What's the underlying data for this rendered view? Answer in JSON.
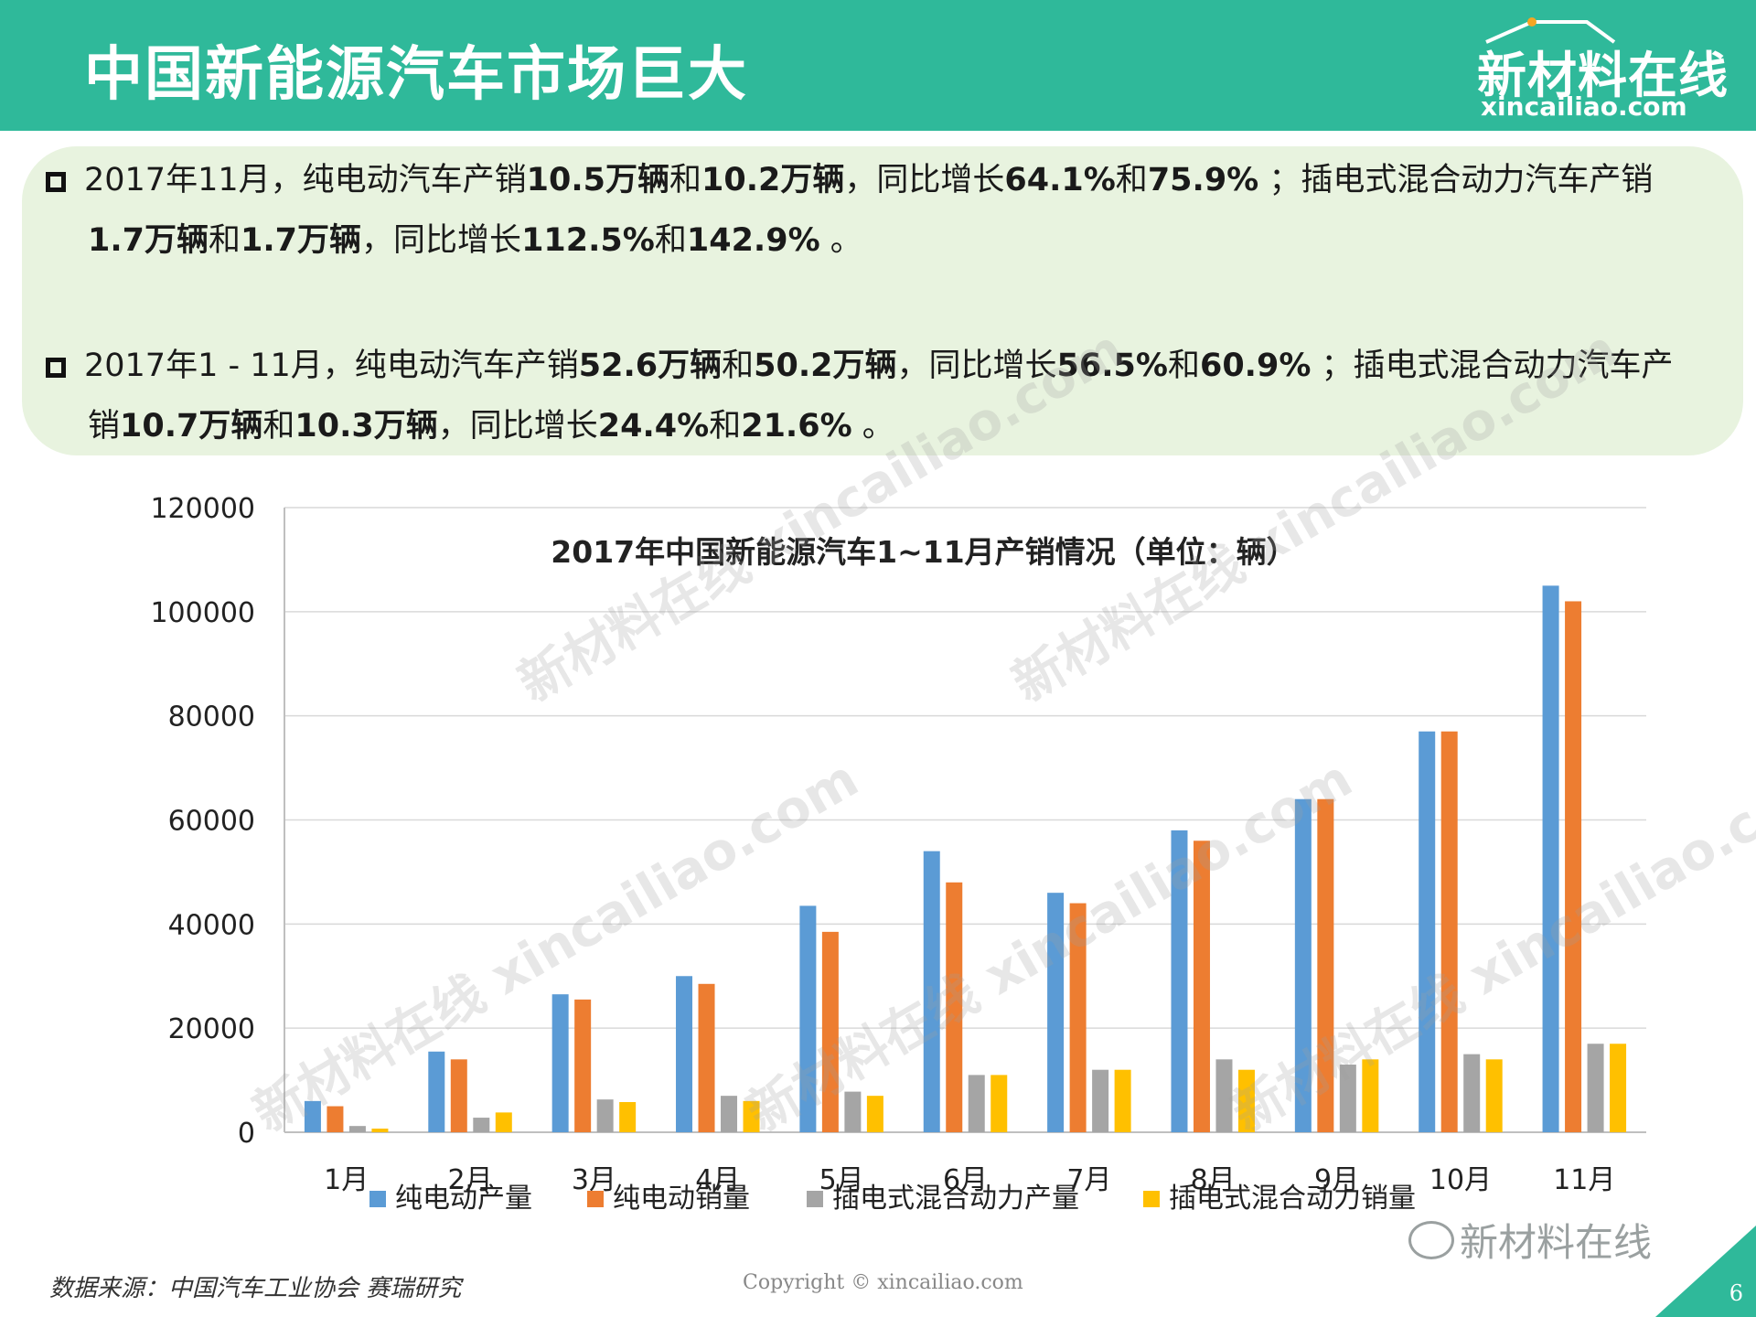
{
  "header": {
    "title": "中国新能源汽车市场巨大",
    "logo_cn": "新材料在线",
    "logo_en": "xincailiao.com"
  },
  "bullets": [
    {
      "segments": [
        {
          "text": "2017年11月，纯电动汽车产销",
          "bold": false
        },
        {
          "text": "10.5万辆",
          "bold": true
        },
        {
          "text": "和",
          "bold": false
        },
        {
          "text": "10.2万辆",
          "bold": true
        },
        {
          "text": "，同比增长",
          "bold": false
        },
        {
          "text": "64.1%",
          "bold": true
        },
        {
          "text": "和",
          "bold": false
        },
        {
          "text": "75.9%",
          "bold": true
        },
        {
          "text": " ；插电式混合动力汽车产销",
          "bold": false
        }
      ],
      "cont": [
        {
          "text": "1.7万辆",
          "bold": true
        },
        {
          "text": "和",
          "bold": false
        },
        {
          "text": "1.7万辆",
          "bold": true
        },
        {
          "text": "，同比增长",
          "bold": false
        },
        {
          "text": "112.5%",
          "bold": true
        },
        {
          "text": "和",
          "bold": false
        },
        {
          "text": "142.9%",
          "bold": true
        },
        {
          "text": " 。",
          "bold": false
        }
      ]
    },
    {
      "segments": [
        {
          "text": "2017年1 - 11月，纯电动汽车产销",
          "bold": false
        },
        {
          "text": "52.6万辆",
          "bold": true
        },
        {
          "text": "和",
          "bold": false
        },
        {
          "text": "50.2万辆",
          "bold": true
        },
        {
          "text": "，同比增长",
          "bold": false
        },
        {
          "text": "56.5%",
          "bold": true
        },
        {
          "text": "和",
          "bold": false
        },
        {
          "text": "60.9%",
          "bold": true
        },
        {
          "text": " ；插电式混合动力汽车产",
          "bold": false
        }
      ],
      "cont": [
        {
          "text": "销",
          "bold": false
        },
        {
          "text": "10.7万辆",
          "bold": true
        },
        {
          "text": "和",
          "bold": false
        },
        {
          "text": "10.3万辆",
          "bold": true
        },
        {
          "text": "，同比增长",
          "bold": false
        },
        {
          "text": "24.4%",
          "bold": true
        },
        {
          "text": "和",
          "bold": false
        },
        {
          "text": "21.6%",
          "bold": true
        },
        {
          "text": " 。",
          "bold": false
        }
      ]
    }
  ],
  "chart_data": {
    "type": "bar",
    "title": "2017年中国新能源汽车1~11月产销情况（单位：辆）",
    "categories": [
      "1月",
      "2月",
      "3月",
      "4月",
      "5月",
      "6月",
      "7月",
      "8月",
      "9月",
      "10月",
      "11月"
    ],
    "series": [
      {
        "name": "纯电动产量",
        "color": "#5b9bd5",
        "values": [
          6000,
          15500,
          26500,
          30000,
          43500,
          54000,
          46000,
          58000,
          64000,
          77000,
          105000
        ]
      },
      {
        "name": "纯电动销量",
        "color": "#ed7d31",
        "values": [
          5000,
          14000,
          25500,
          28500,
          38500,
          48000,
          44000,
          56000,
          64000,
          77000,
          102000
        ]
      },
      {
        "name": "插电式混合动力产量",
        "color": "#a5a5a5",
        "values": [
          1200,
          2800,
          6300,
          7000,
          7800,
          11000,
          12000,
          14000,
          13000,
          15000,
          17000
        ]
      },
      {
        "name": "插电式混合动力销量",
        "color": "#ffc000",
        "values": [
          700,
          3800,
          5800,
          6000,
          7000,
          11000,
          12000,
          12000,
          14000,
          14000,
          17000
        ]
      }
    ],
    "yticks": [
      "0",
      "20000",
      "40000",
      "60000",
      "80000",
      "100000",
      "120000"
    ],
    "ylim": [
      0,
      120000
    ],
    "grid": true,
    "legend": "bottom"
  },
  "watermark": {
    "cn": "新材料在线",
    "en": "xincailiao.com"
  },
  "footer": {
    "source": "数据来源：中国汽车工业协会 赛瑞研究",
    "copyright": "Copyright © xincailiao.com",
    "wechat": "新材料在线",
    "page": "6"
  }
}
